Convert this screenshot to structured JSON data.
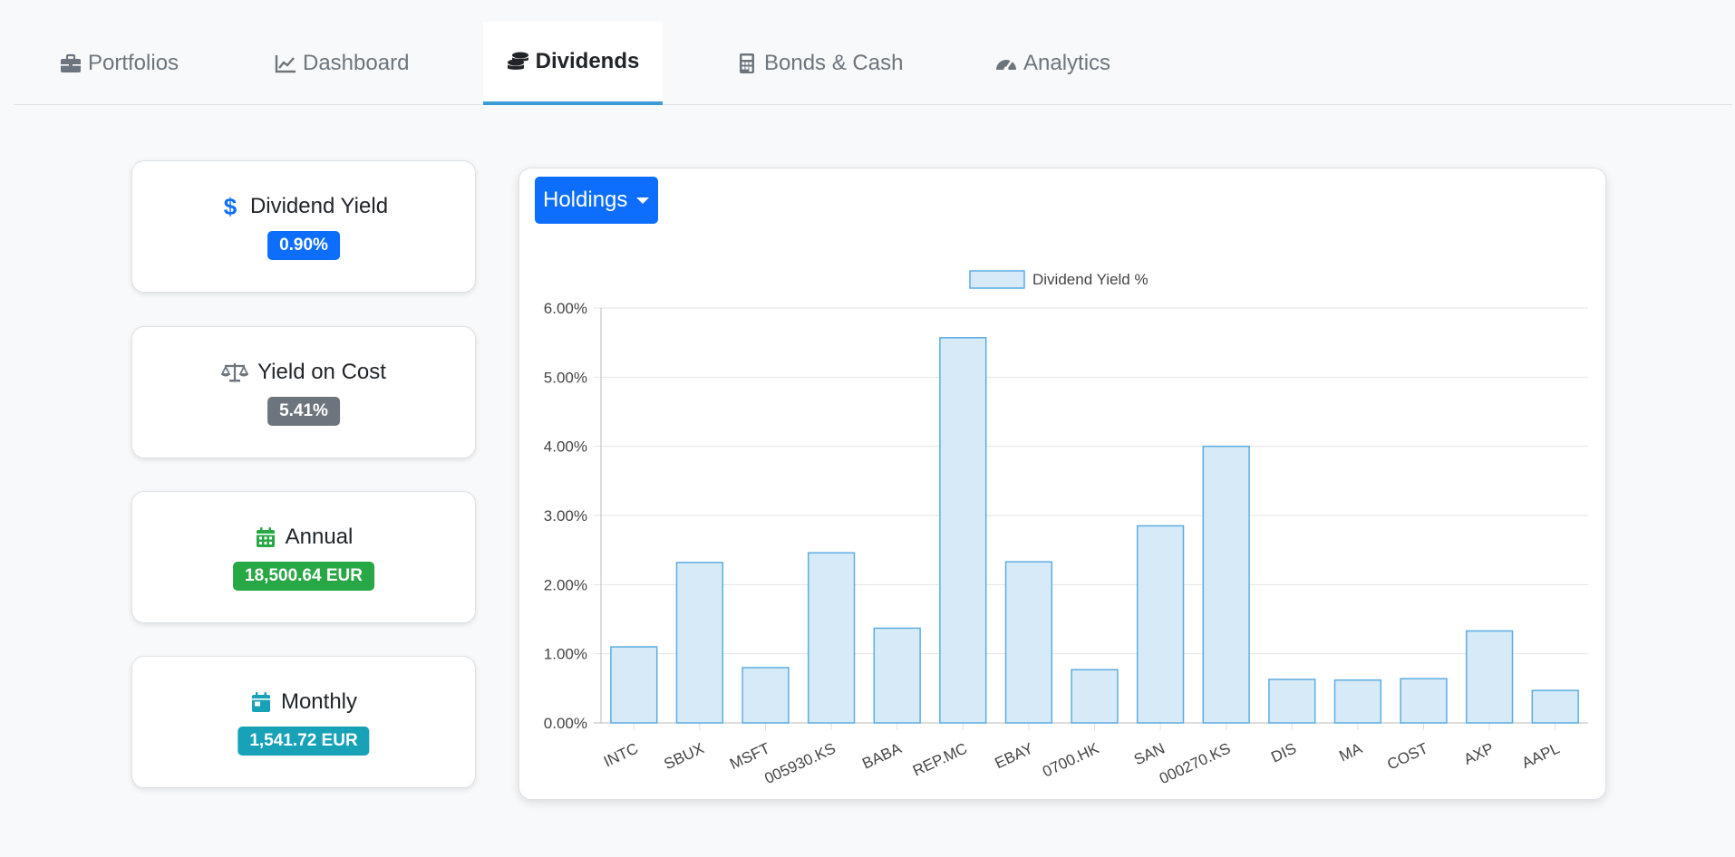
{
  "tabs": [
    {
      "label": "Portfolios",
      "icon": "briefcase-icon"
    },
    {
      "label": "Dashboard",
      "icon": "line-chart-icon"
    },
    {
      "label": "Dividends",
      "icon": "coins-icon",
      "active": true
    },
    {
      "label": "Bonds & Cash",
      "icon": "calculator-icon"
    },
    {
      "label": "Analytics",
      "icon": "gauge-icon"
    }
  ],
  "cards": [
    {
      "title": "Dividend Yield",
      "value": "0.90%",
      "icon": "dollar-icon",
      "icon_color": "#0d6efd",
      "badge_color": "#0d6efd"
    },
    {
      "title": "Yield on Cost",
      "value": "5.41%",
      "icon": "scale-icon",
      "icon_color": "#6c757d",
      "badge_color": "#6c757d"
    },
    {
      "title": "Annual",
      "value": "18,500.64 EUR",
      "icon": "calendar-icon",
      "icon_color": "#28a745",
      "badge_color": "#28a745"
    },
    {
      "title": "Monthly",
      "value": "1,541.72 EUR",
      "icon": "calendar-day-icon",
      "icon_color": "#17a2b8",
      "badge_color": "#17a2b8"
    }
  ],
  "dropdown": {
    "label": "Holdings"
  },
  "chart_data": {
    "type": "bar",
    "title": "",
    "legend": "Dividend Yield %",
    "legend_position": "top-center",
    "categories": [
      "INTC",
      "SBUX",
      "MSFT",
      "005930.KS",
      "BABA",
      "REP.MC",
      "EBAY",
      "0700.HK",
      "SAN",
      "000270.KS",
      "DIS",
      "MA",
      "COST",
      "AXP",
      "AAPL"
    ],
    "values": [
      1.1,
      2.32,
      0.8,
      2.46,
      1.37,
      5.57,
      2.33,
      0.77,
      2.85,
      4.0,
      0.63,
      0.62,
      0.64,
      1.33,
      0.47
    ],
    "ylim": [
      0,
      6
    ],
    "yticks": [
      "0.00%",
      "1.00%",
      "2.00%",
      "3.00%",
      "4.00%",
      "5.00%",
      "6.00%"
    ],
    "xlabel": "",
    "ylabel": "",
    "grid": true,
    "bar_fill": "#d6eaf8",
    "bar_stroke": "#5dade2"
  }
}
